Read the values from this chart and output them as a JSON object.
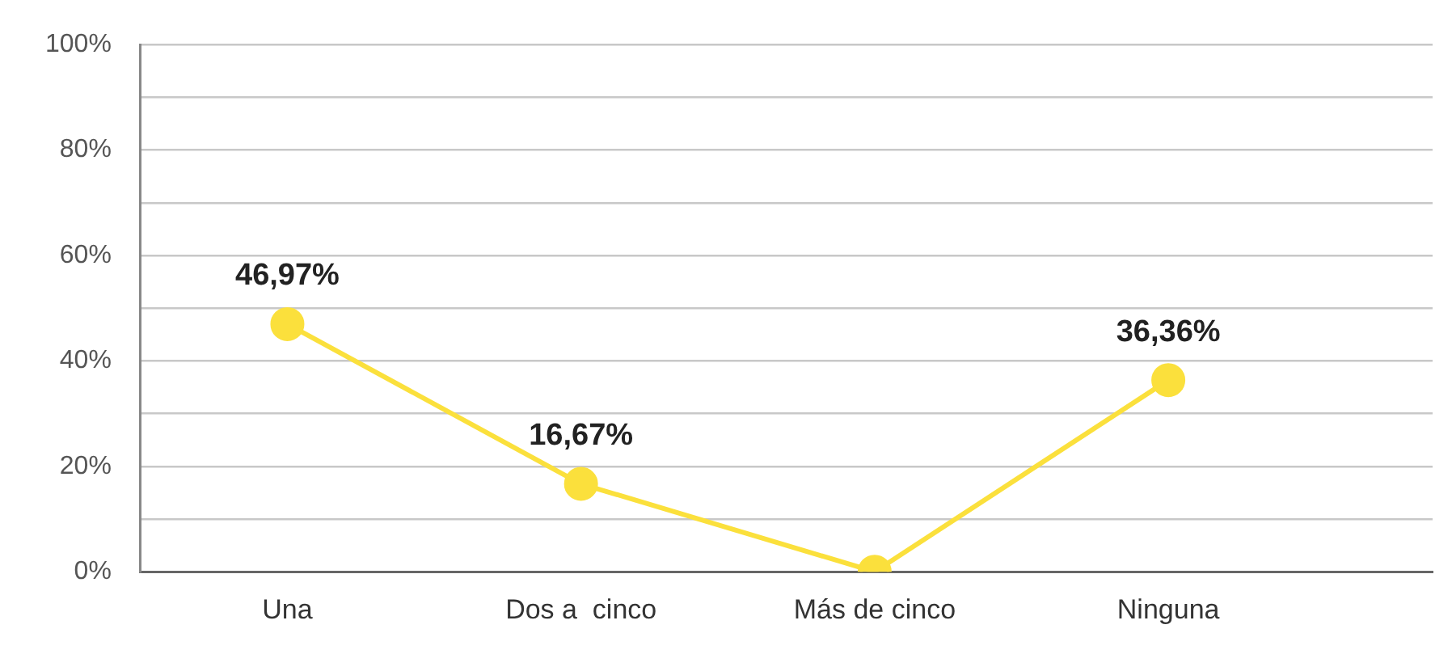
{
  "chart_data": {
    "type": "line",
    "categories": [
      "Una",
      "Dos a  cinco",
      "Más de cinco",
      "Ninguna"
    ],
    "series": [
      {
        "color": "#fbe03c",
        "values": [
          46.97,
          16.67,
          0,
          36.36
        ],
        "value_labels": [
          "46,97%",
          "16,67%",
          null,
          "36,36%"
        ]
      }
    ],
    "ylim": [
      0,
      100
    ],
    "yticks": [
      {
        "value": 0,
        "label": "0%"
      },
      {
        "value": 10,
        "label": null
      },
      {
        "value": 20,
        "label": "20%"
      },
      {
        "value": 30,
        "label": null
      },
      {
        "value": 40,
        "label": "40%"
      },
      {
        "value": 50,
        "label": null
      },
      {
        "value": 60,
        "label": "60%"
      },
      {
        "value": 70,
        "label": null
      },
      {
        "value": 80,
        "label": "80%"
      },
      {
        "value": 90,
        "label": null
      },
      {
        "value": 100,
        "label": "100%"
      }
    ],
    "grid": "y",
    "marker": "circle",
    "line_style": "solid",
    "legend": false
  }
}
